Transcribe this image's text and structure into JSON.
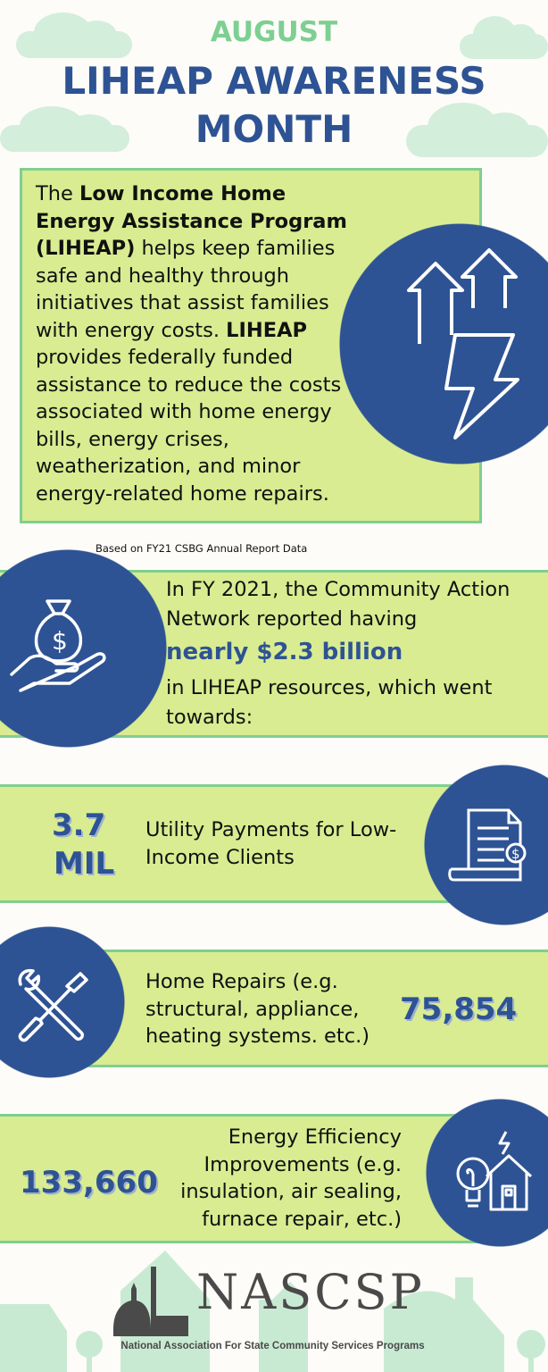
{
  "header": {
    "month": "AUGUST",
    "title_line1": "LIHEAP AWARENESS",
    "title_line2": "MONTH"
  },
  "colors": {
    "navy": "#2e5394",
    "green_box": "#d9ec91",
    "green_border": "#7fcf8f",
    "accent_green": "#7dcf92",
    "background": "#fdfcf8"
  },
  "intro": {
    "p1": "The ",
    "b1": "Low Income Home Energy Assistance Program (LIHEAP)",
    "p2": " helps keep families safe and healthy through initiatives that assist families with energy costs. ",
    "b2": "LIHEAP",
    "p3": " provides federally funded assistance to reduce the costs associated with home energy bills, energy crises, weatherization, and minor energy-related home repairs.",
    "icon": "lightning-arrows-icon"
  },
  "source_note": "Based on FY21 CSBG Annual Report Data",
  "resources": {
    "line1": "In FY 2021, the Community Action Network reported having",
    "highlight": "nearly $2.3 billion",
    "line2": "in LIHEAP resources, which went towards:",
    "icon": "money-bag-hand-icon"
  },
  "stats": [
    {
      "value_line1": "3.7",
      "value_line2": "MIL",
      "label": "Utility Payments for Low-Income Clients",
      "icon": "bill-receipt-icon"
    },
    {
      "value": "75,854",
      "label": "Home Repairs (e.g. structural, appliance, heating systems. etc.)",
      "icon": "wrench-screwdriver-icon"
    },
    {
      "value": "133,660",
      "label": "Energy Efficiency Improvements (e.g. insulation, air sealing, furnace repair, etc.)",
      "icon": "lightbulb-house-icon"
    }
  ],
  "footer": {
    "logo": "NASCSP",
    "org_name": "National Association For State Community Services Programs"
  }
}
